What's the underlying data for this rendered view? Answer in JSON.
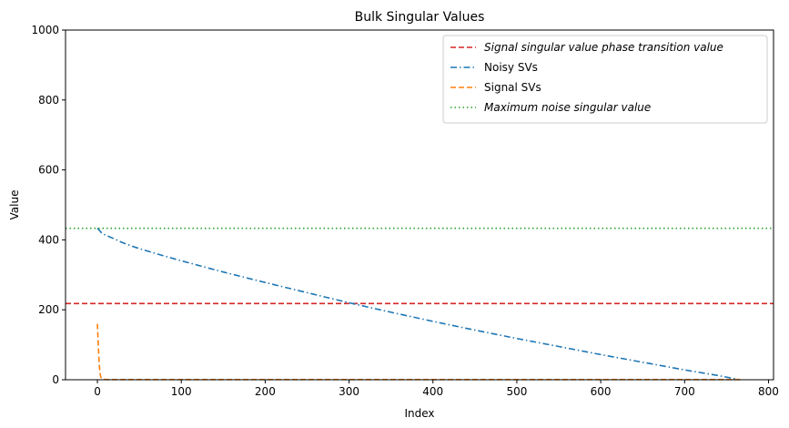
{
  "chart_data": {
    "type": "line",
    "title": "Bulk Singular Values",
    "xlabel": "Index",
    "ylabel": "Value",
    "xlim": [
      -38,
      806
    ],
    "ylim": [
      0,
      1000
    ],
    "xticks": [
      0,
      100,
      200,
      300,
      400,
      500,
      600,
      700,
      800
    ],
    "yticks": [
      0,
      200,
      400,
      600,
      800,
      1000
    ],
    "grid": false,
    "legend_position": "top-right",
    "hlines": [
      {
        "name": "Signal singular value phase transition value",
        "y": 218,
        "color": "#d62728",
        "style": "dashed",
        "italic": true
      },
      {
        "name": "Maximum noise singular value",
        "y": 433,
        "color": "#2ca02c",
        "style": "dotted",
        "italic": true
      }
    ],
    "series": [
      {
        "name": "Noisy SVs",
        "color": "#1f77b4",
        "style": "dashdot",
        "x": [
          0,
          2,
          5,
          10,
          20,
          30,
          40,
          50,
          75,
          100,
          150,
          200,
          250,
          300,
          350,
          400,
          450,
          500,
          550,
          600,
          650,
          700,
          740,
          766
        ],
        "y": [
          433,
          428,
          420,
          413,
          403,
          392,
          383,
          375,
          357,
          340,
          308,
          278,
          249,
          220,
          193,
          167,
          142,
          118,
          95,
          72,
          50,
          28,
          12,
          0
        ]
      },
      {
        "name": "Signal SVs",
        "color": "#ff7f0e",
        "style": "dashed",
        "x": [
          0,
          1,
          2,
          3,
          4,
          5,
          6,
          8,
          10,
          766
        ],
        "y": [
          160,
          100,
          50,
          20,
          8,
          4,
          2,
          1,
          0.5,
          0.5
        ]
      }
    ],
    "legend_order": [
      "Signal singular value phase transition value",
      "Noisy SVs",
      "Signal SVs",
      "Maximum noise singular value"
    ]
  }
}
